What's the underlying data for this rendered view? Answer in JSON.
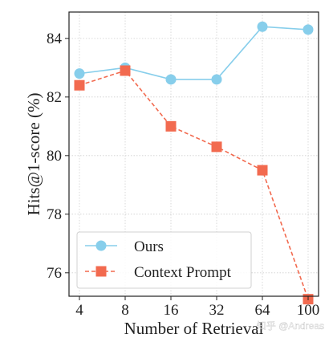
{
  "chart_data": {
    "type": "line",
    "categories": [
      "4",
      "8",
      "16",
      "32",
      "64",
      "100"
    ],
    "series": [
      {
        "name": "Ours",
        "values": [
          82.8,
          83.0,
          82.6,
          82.6,
          84.4,
          84.3
        ],
        "color": "#87ceeb",
        "line_style": "solid",
        "marker": "circle"
      },
      {
        "name": "Context Prompt",
        "values": [
          82.4,
          82.9,
          81.0,
          80.3,
          79.5,
          75.1
        ],
        "color": "#f26a4f",
        "line_style": "dashed",
        "marker": "square"
      }
    ],
    "xlabel": "Number of Retrieval",
    "ylabel": "Hits@1-score (%)",
    "ylim": [
      75.2,
      84.9
    ],
    "yticks": [
      "76",
      "78",
      "80",
      "82",
      "84"
    ],
    "grid": true,
    "legend_position": "bottom-left"
  },
  "watermark": "知乎 @Andreas"
}
